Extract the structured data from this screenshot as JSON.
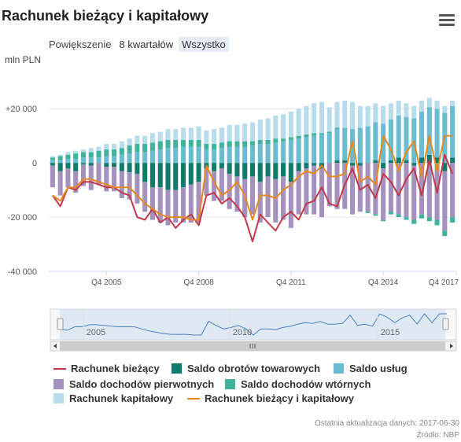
{
  "header": {
    "title": "Rachunek bieżący i kapitałowy",
    "zoom_label": "Powiększenie",
    "zoom_options": [
      "8 kwartałów",
      "Wszystko"
    ],
    "zoom_selected": "Wszystko"
  },
  "footer": {
    "updated": "Ostatnia aktualizacja danych: 2017-06-30",
    "source": "Źródło: NBP"
  },
  "colors": {
    "bieżący": "#c0394b",
    "towarowych": "#117a6a",
    "uslug": "#6bbcd1",
    "pierwotnych": "#a591bd",
    "wtornych": "#41b39c",
    "kapitalowy": "#b9dcec",
    "bieżący_kapitalowy": "#e8871e"
  },
  "chart_data": {
    "type": "bar",
    "title": "Rachunek bieżący i kapitałowy",
    "ylabel": "mln PLN",
    "y_ticks": [
      "+20 000",
      "0",
      "-20 000",
      "-40 000"
    ],
    "ylim": [
      -40000,
      34000
    ],
    "x_start": "Q1 2004",
    "x_tick_labels": [
      "Q4 2005",
      "Q4 2008",
      "Q4 2011",
      "Q4 2014",
      "Q4 2017"
    ],
    "navigator_labels": [
      "2005",
      "2010",
      "2015"
    ],
    "grid": true,
    "legend_position": "bottom",
    "stacked": true,
    "categories": [
      "Q1 2004",
      "Q2 2004",
      "Q3 2004",
      "Q4 2004",
      "Q1 2005",
      "Q2 2005",
      "Q3 2005",
      "Q4 2005",
      "Q1 2006",
      "Q2 2006",
      "Q3 2006",
      "Q4 2006",
      "Q1 2007",
      "Q2 2007",
      "Q3 2007",
      "Q4 2007",
      "Q1 2008",
      "Q2 2008",
      "Q3 2008",
      "Q4 2008",
      "Q1 2009",
      "Q2 2009",
      "Q3 2009",
      "Q4 2009",
      "Q1 2010",
      "Q2 2010",
      "Q3 2010",
      "Q4 2010",
      "Q1 2011",
      "Q2 2011",
      "Q3 2011",
      "Q4 2011",
      "Q1 2012",
      "Q2 2012",
      "Q3 2012",
      "Q4 2012",
      "Q1 2013",
      "Q2 2013",
      "Q3 2013",
      "Q4 2013",
      "Q1 2014",
      "Q2 2014",
      "Q3 2014",
      "Q4 2014",
      "Q1 2015",
      "Q2 2015",
      "Q3 2015",
      "Q4 2015",
      "Q1 2016",
      "Q2 2016",
      "Q3 2016",
      "Q4 2016",
      "Q1 2017"
    ],
    "series": [
      {
        "name": "Saldo obrotów towarowych",
        "kind": "bar",
        "values": [
          -1000,
          -3000,
          -2000,
          -3000,
          -500,
          -1000,
          0,
          -1500,
          -1500,
          -3000,
          -3500,
          -4000,
          -7000,
          -9000,
          -9000,
          -10000,
          -10000,
          -9000,
          -8000,
          -7000,
          -2000,
          -3000,
          -2000,
          -4000,
          -5000,
          -6000,
          -5000,
          -7000,
          -5000,
          -6000,
          -5000,
          -7000,
          -3000,
          -2000,
          -1000,
          -2000,
          0,
          1000,
          1000,
          -1000,
          -1000,
          0,
          1000,
          -2000,
          1000,
          2000,
          1000,
          -1000,
          2000,
          3000,
          2000,
          -3000,
          2000
        ]
      },
      {
        "name": "Saldo usług",
        "kind": "bar",
        "values": [
          1000,
          1000,
          1500,
          1500,
          2000,
          2000,
          2000,
          2500,
          2500,
          3000,
          3500,
          4000,
          4000,
          4500,
          5000,
          5500,
          5500,
          6000,
          6000,
          6000,
          5000,
          5000,
          5500,
          6000,
          6000,
          6000,
          6500,
          7000,
          7000,
          7500,
          8000,
          8500,
          9000,
          9500,
          10000,
          10500,
          11000,
          11500,
          12000,
          12500,
          13000,
          13500,
          14000,
          14500,
          15000,
          15500,
          16000,
          16500,
          17000,
          17500,
          18000,
          18500,
          19000
        ]
      },
      {
        "name": "Saldo dochodów pierwotnych",
        "kind": "bar",
        "values": [
          -8000,
          -9000,
          -7000,
          -8000,
          -8000,
          -9000,
          -8000,
          -9000,
          -9000,
          -10000,
          -10000,
          -11000,
          -11000,
          -12000,
          -13000,
          -13000,
          -12000,
          -13000,
          -14000,
          -15000,
          -10000,
          -11000,
          -12000,
          -13000,
          -13000,
          -14000,
          -14000,
          -15000,
          -15000,
          -16000,
          -16000,
          -17000,
          -16000,
          -17000,
          -18000,
          -18000,
          -16000,
          -17000,
          -17000,
          -18000,
          -17000,
          -18000,
          -19000,
          -19000,
          -18000,
          -19000,
          -20000,
          -20000,
          -19000,
          -20000,
          -21000,
          -22000,
          -20000
        ]
      },
      {
        "name": "Saldo dochodów wtórnych",
        "kind": "bar",
        "values": [
          1000,
          1500,
          1500,
          2000,
          2000,
          2000,
          2500,
          2500,
          2500,
          2500,
          3000,
          3000,
          3000,
          3000,
          3000,
          3000,
          3000,
          2500,
          2500,
          2500,
          2000,
          2000,
          2000,
          2000,
          2000,
          2000,
          1500,
          1500,
          1500,
          1500,
          1000,
          1000,
          1000,
          1000,
          1000,
          500,
          500,
          500,
          0,
          0,
          0,
          -500,
          -500,
          -500,
          -1000,
          -1000,
          -1000,
          -1500,
          -1500,
          -1500,
          -2000,
          -2000,
          -2000
        ]
      },
      {
        "name": "Rachunek kapitałowy",
        "kind": "bar",
        "values": [
          500,
          500,
          1000,
          1000,
          1000,
          1500,
          1500,
          2000,
          2000,
          2500,
          2500,
          3000,
          3000,
          3500,
          3500,
          4000,
          4000,
          4500,
          4500,
          5000,
          5000,
          5500,
          5500,
          6000,
          6000,
          6500,
          7000,
          7500,
          8000,
          8500,
          9000,
          9500,
          10000,
          10500,
          11000,
          11500,
          9000,
          9500,
          10000,
          10000,
          8000,
          7500,
          7000,
          6500,
          6000,
          5500,
          5000,
          4500,
          4000,
          3500,
          3000,
          2500,
          2000
        ]
      },
      {
        "name": "Rachunek bieżący",
        "kind": "line",
        "values": [
          -12000,
          -16000,
          -9000,
          -10000,
          -7000,
          -7000,
          -8000,
          -9000,
          -9000,
          -11000,
          -12000,
          -20000,
          -21000,
          -17000,
          -22000,
          -20000,
          -24000,
          -21000,
          -19000,
          -23000,
          -12000,
          -11000,
          -15000,
          -13000,
          -16000,
          -20000,
          -29000,
          -19000,
          -22000,
          -25000,
          -20000,
          -18000,
          -21000,
          -15000,
          -14000,
          -9000,
          -15000,
          -16000,
          -8000,
          -2000,
          -10000,
          -8000,
          -13000,
          -4000,
          -7000,
          -12000,
          -6000,
          -2000,
          -12000,
          1000,
          -11000,
          3000,
          -4000
        ]
      },
      {
        "name": "Rachunek bieżący i kapitałowy",
        "kind": "line",
        "values": [
          -12000,
          -14000,
          -9000,
          -9000,
          -6000,
          -6000,
          -7000,
          -8000,
          -9000,
          -9000,
          -9000,
          -12000,
          -15000,
          -17000,
          -19000,
          -20000,
          -20000,
          -20000,
          -21000,
          -21000,
          -1000,
          -7000,
          -12000,
          -10000,
          -7000,
          -12000,
          -21000,
          -12000,
          -12000,
          -13000,
          -10000,
          -8000,
          -5000,
          -3000,
          -4000,
          -1000,
          -5000,
          -5000,
          -4000,
          8000,
          -7000,
          -5000,
          -8000,
          10000,
          5000,
          -3000,
          4000,
          8000,
          -5000,
          10000,
          -3000,
          10000,
          10000
        ]
      }
    ]
  }
}
